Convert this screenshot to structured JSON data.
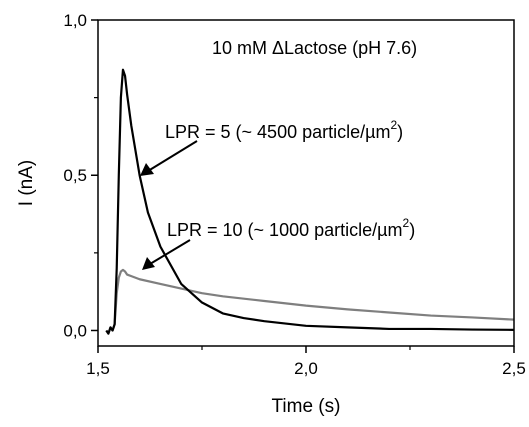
{
  "chart_data": {
    "type": "line",
    "xlabel": "Time (s)",
    "ylabel": "I (nA)",
    "xlim": [
      1.5,
      2.5
    ],
    "ylim": [
      -0.05,
      1.0
    ],
    "x_ticks": [
      {
        "value": 1.5,
        "label": "1,5"
      },
      {
        "value": 2.0,
        "label": "2,0"
      },
      {
        "value": 2.5,
        "label": "2,5"
      }
    ],
    "y_ticks": [
      {
        "value": 0.0,
        "label": "0,0"
      },
      {
        "value": 0.5,
        "label": "0,5"
      },
      {
        "value": 1.0,
        "label": "1,0"
      }
    ],
    "annotations": {
      "condition": "10 mM ΔLactose (pH 7.6)",
      "lpr5_main": "LPR = 5 (~ 4500 particle/µm",
      "lpr5_sup": "2",
      "lpr5_tail": ")",
      "lpr10_main": "LPR = 10 (~ 1000 particle/µm",
      "lpr10_sup": "2",
      "lpr10_tail": ")"
    },
    "series": [
      {
        "color": "#000000",
        "x": [
          1.52,
          1.525,
          1.53,
          1.535,
          1.54,
          1.545,
          1.55,
          1.555,
          1.56,
          1.565,
          1.57,
          1.58,
          1.6,
          1.62,
          1.65,
          1.7,
          1.75,
          1.8,
          1.85,
          1.9,
          2.0,
          2.1,
          2.2,
          2.3,
          2.4,
          2.5
        ],
        "y": [
          0.0,
          -0.01,
          0.01,
          0.0,
          0.02,
          0.2,
          0.5,
          0.75,
          0.84,
          0.82,
          0.76,
          0.66,
          0.5,
          0.38,
          0.27,
          0.15,
          0.09,
          0.055,
          0.04,
          0.03,
          0.015,
          0.01,
          0.005,
          0.005,
          0.003,
          0.002
        ]
      },
      {
        "color": "#7f7f7f",
        "x": [
          1.52,
          1.525,
          1.53,
          1.535,
          1.54,
          1.545,
          1.55,
          1.555,
          1.56,
          1.565,
          1.57,
          1.58,
          1.6,
          1.65,
          1.7,
          1.75,
          1.8,
          1.9,
          2.0,
          2.1,
          2.2,
          2.3,
          2.4,
          2.5
        ],
        "y": [
          0.0,
          -0.01,
          0.01,
          0.0,
          0.02,
          0.12,
          0.17,
          0.19,
          0.195,
          0.19,
          0.18,
          0.175,
          0.165,
          0.15,
          0.135,
          0.12,
          0.11,
          0.095,
          0.08,
          0.068,
          0.058,
          0.048,
          0.042,
          0.035
        ]
      }
    ]
  }
}
